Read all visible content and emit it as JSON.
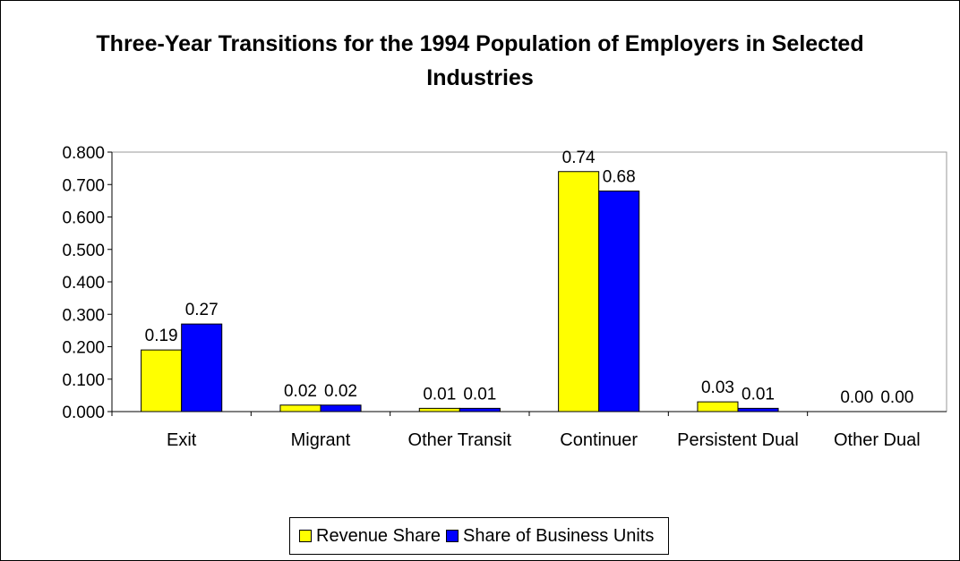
{
  "chart_data": {
    "type": "bar",
    "title": "Three-Year Transitions for the 1994 Population of Employers in Selected Industries",
    "categories": [
      "Exit",
      "Migrant",
      "Other Transit",
      "Continuer",
      "Persistent Dual",
      "Other Dual"
    ],
    "series": [
      {
        "name": "Revenue Share",
        "color": "#ffff00",
        "values": [
          0.19,
          0.02,
          0.01,
          0.74,
          0.03,
          0
        ],
        "value_labels": [
          "0.19",
          "0.02",
          "0.01",
          "0.74",
          "0.03",
          "0.00"
        ]
      },
      {
        "name": "Share of Business Units",
        "color": "#0000ff",
        "values": [
          0.27,
          0.02,
          0.01,
          0.68,
          0.01,
          0
        ],
        "value_labels": [
          "0.27",
          "0.02",
          "0.01",
          "0.68",
          "0.01",
          "0.00"
        ]
      }
    ],
    "ylim": [
      0,
      0.8
    ],
    "yticks": [
      {
        "value": 0,
        "label": "0.000"
      },
      {
        "value": 0.1,
        "label": "0.100"
      },
      {
        "value": 0.2,
        "label": "0.200"
      },
      {
        "value": 0.3,
        "label": "0.300"
      },
      {
        "value": 0.4,
        "label": "0.400"
      },
      {
        "value": 0.5,
        "label": "0.500"
      },
      {
        "value": 0.6,
        "label": "0.600"
      },
      {
        "value": 0.7,
        "label": "0.700"
      },
      {
        "value": 0.8,
        "label": "0.800"
      }
    ],
    "legend": "bottom"
  }
}
